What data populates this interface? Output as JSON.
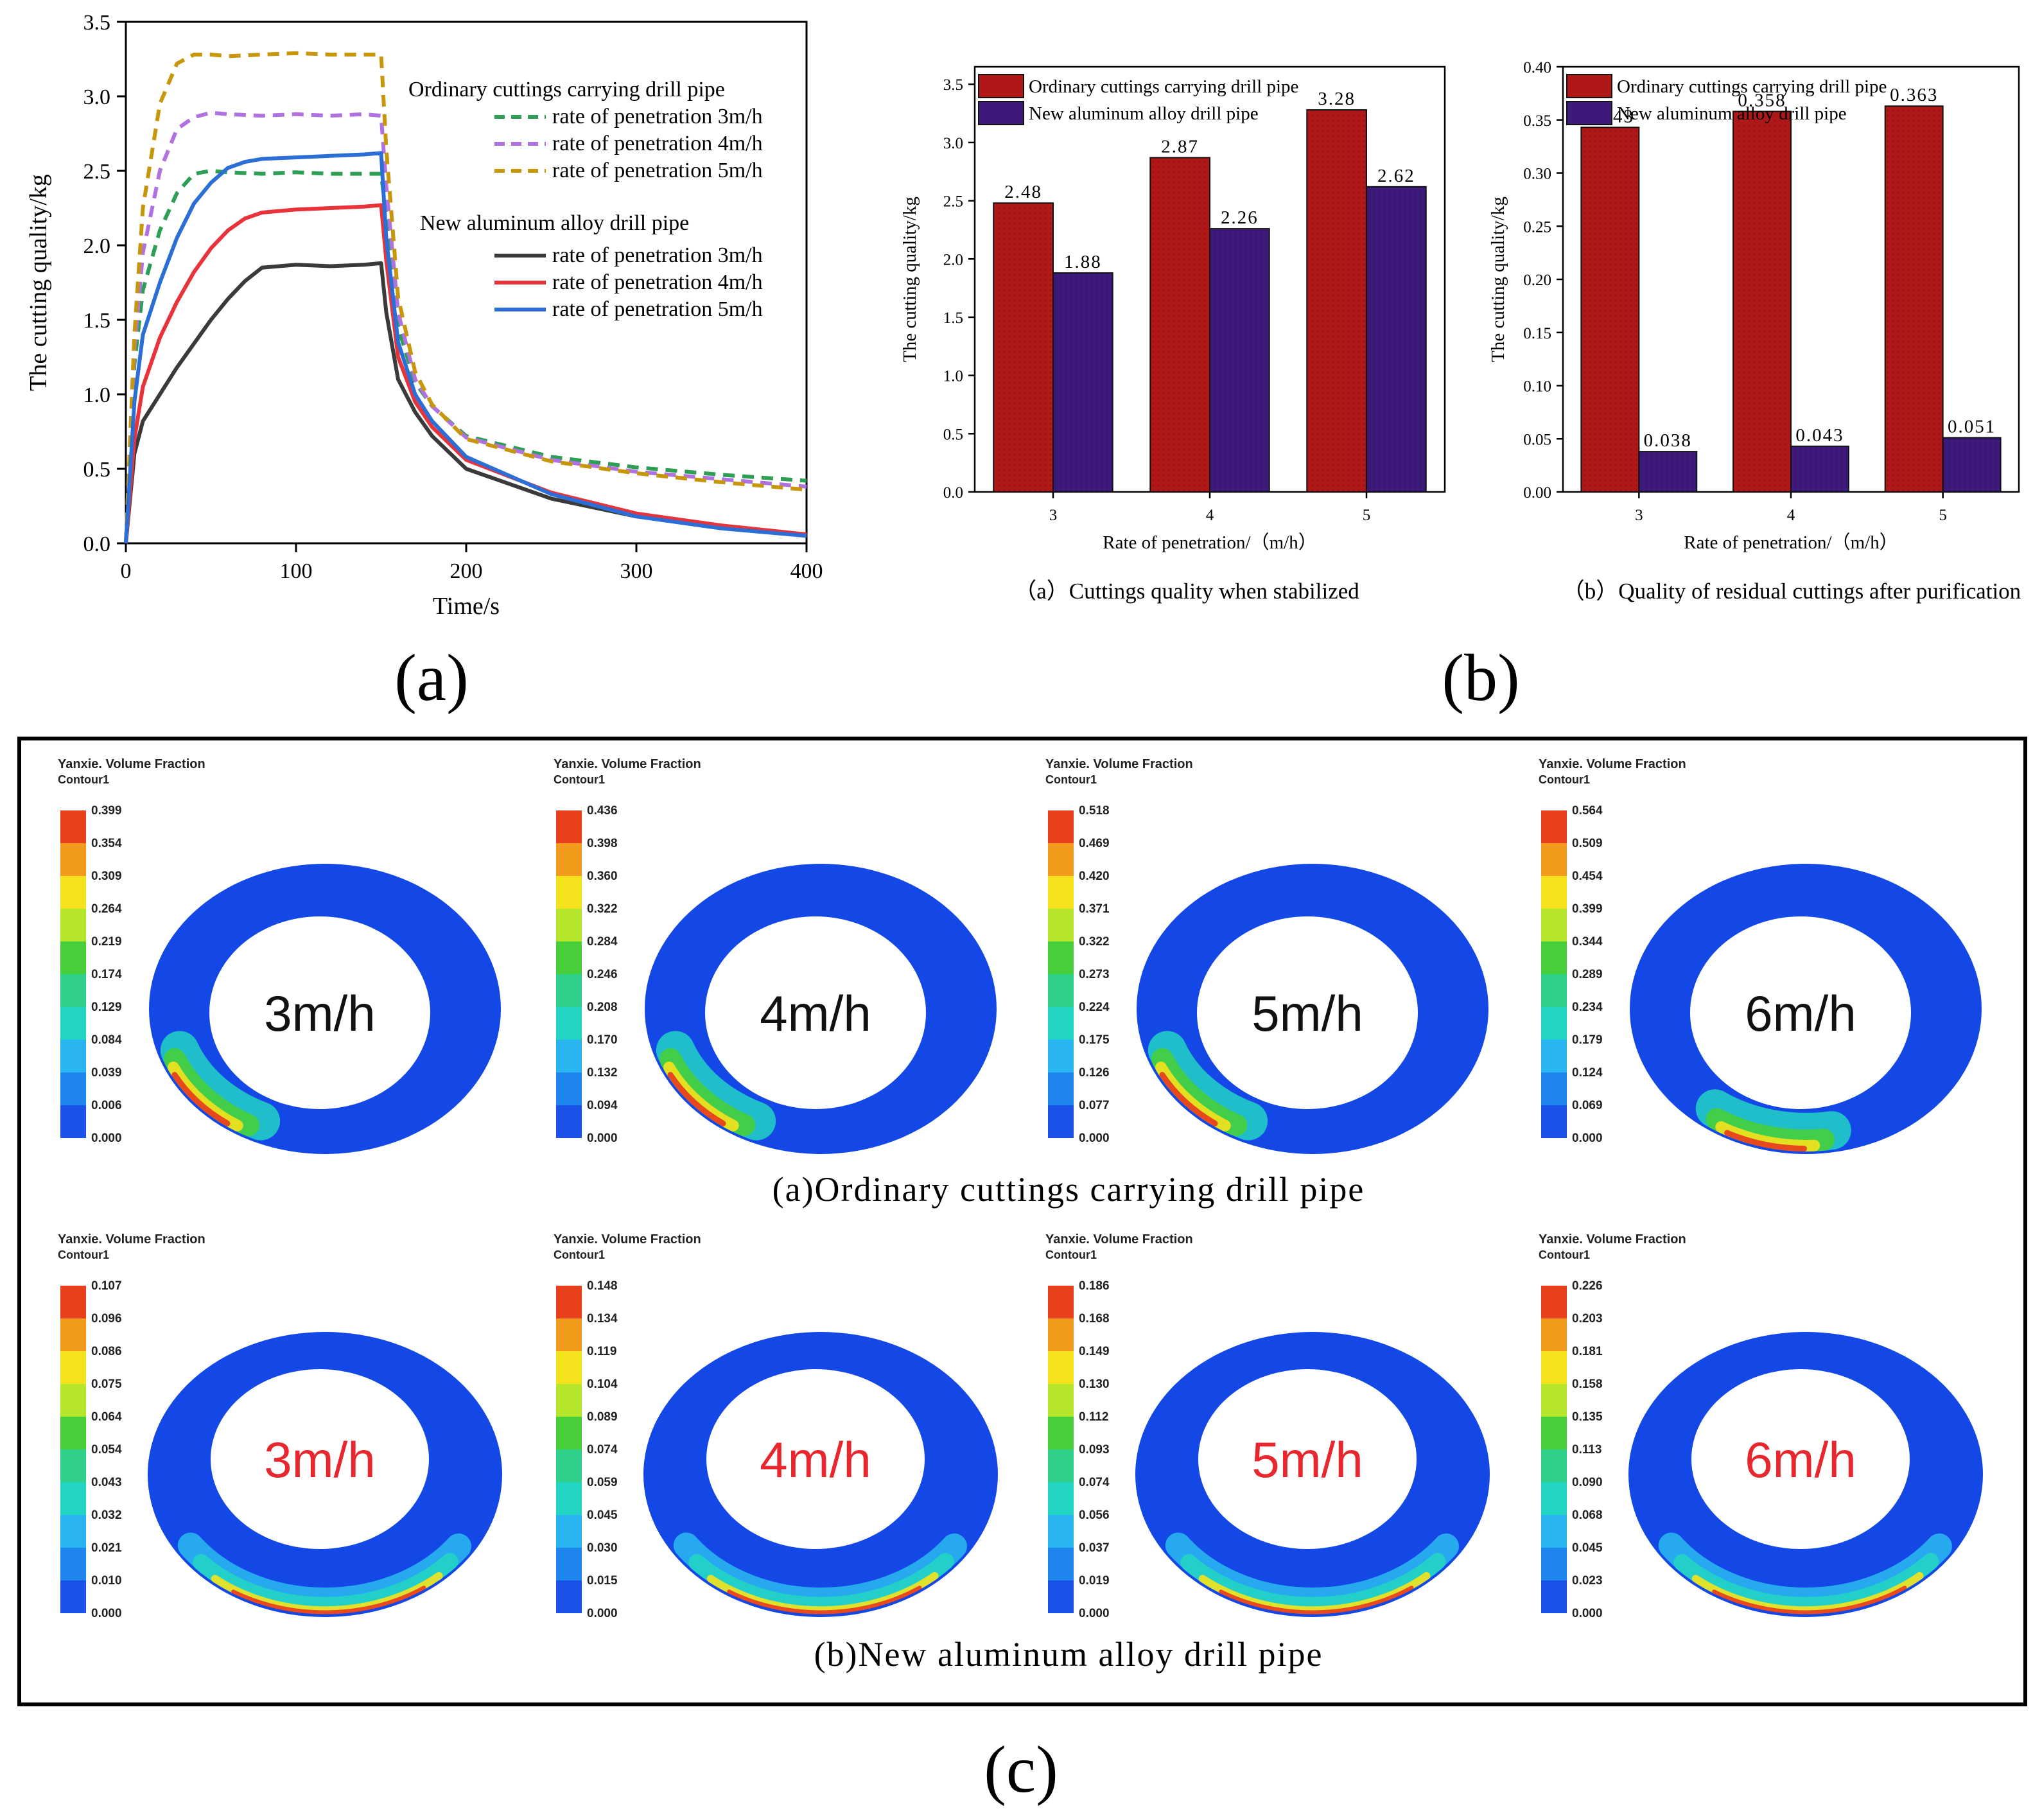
{
  "panel_labels": {
    "a": "(a)",
    "b": "(b)",
    "c": "(c)"
  },
  "chart_data": [
    {
      "id": "line",
      "type": "line",
      "xlabel": "Time/s",
      "ylabel": "The cutting quality/kg",
      "xlim": [
        0,
        400
      ],
      "ylim": [
        0,
        3.5
      ],
      "xticks": [
        "0",
        "100",
        "200",
        "300",
        "400"
      ],
      "yticks": [
        "0.0",
        "0.5",
        "1.0",
        "1.5",
        "2.0",
        "2.5",
        "3.0",
        "3.5"
      ],
      "grid": false,
      "legend": {
        "placement": "top-right",
        "group1": "Ordinary cuttings carrying drill pipe",
        "group2": "New aluminum alloy drill pipe"
      },
      "series": [
        {
          "name": "rate of penetration 3m/h",
          "group": 1,
          "dash": true,
          "color": "#2e9e55",
          "x": [
            0,
            5,
            10,
            20,
            30,
            40,
            50,
            60,
            80,
            100,
            120,
            140,
            150,
            153,
            160,
            170,
            180,
            200,
            250,
            300,
            350,
            400
          ],
          "y": [
            0,
            1.2,
            1.7,
            2.1,
            2.35,
            2.48,
            2.5,
            2.49,
            2.48,
            2.49,
            2.48,
            2.48,
            2.48,
            2.2,
            1.45,
            1.08,
            0.92,
            0.72,
            0.58,
            0.51,
            0.46,
            0.42
          ]
        },
        {
          "name": "rate of penetration 4m/h",
          "group": 1,
          "dash": true,
          "color": "#b072e0",
          "x": [
            0,
            5,
            10,
            20,
            30,
            40,
            50,
            60,
            80,
            100,
            120,
            140,
            150,
            153,
            160,
            170,
            180,
            200,
            250,
            300,
            350,
            400
          ],
          "y": [
            0,
            1.3,
            1.95,
            2.5,
            2.78,
            2.86,
            2.89,
            2.88,
            2.87,
            2.88,
            2.87,
            2.88,
            2.87,
            2.4,
            1.55,
            1.1,
            0.92,
            0.71,
            0.56,
            0.48,
            0.43,
            0.38
          ]
        },
        {
          "name": "rate of penetration 5m/h",
          "group": 1,
          "dash": true,
          "color": "#c8960a",
          "x": [
            0,
            5,
            10,
            20,
            30,
            40,
            50,
            60,
            80,
            100,
            120,
            140,
            150,
            153,
            160,
            170,
            180,
            200,
            250,
            300,
            350,
            400
          ],
          "y": [
            0,
            1.4,
            2.25,
            2.95,
            3.22,
            3.28,
            3.28,
            3.27,
            3.28,
            3.29,
            3.28,
            3.28,
            3.28,
            2.65,
            1.65,
            1.15,
            0.93,
            0.7,
            0.55,
            0.47,
            0.41,
            0.36
          ]
        },
        {
          "name": "rate of penetration 3m/h",
          "group": 2,
          "dash": false,
          "color": "#3a3a3a",
          "x": [
            0,
            5,
            10,
            20,
            30,
            40,
            50,
            60,
            70,
            80,
            100,
            120,
            140,
            150,
            153,
            160,
            170,
            180,
            200,
            250,
            300,
            350,
            400
          ],
          "y": [
            0,
            0.6,
            0.82,
            1.0,
            1.18,
            1.34,
            1.5,
            1.64,
            1.76,
            1.85,
            1.87,
            1.86,
            1.87,
            1.88,
            1.55,
            1.1,
            0.88,
            0.72,
            0.5,
            0.3,
            0.18,
            0.11,
            0.05
          ]
        },
        {
          "name": "rate of penetration 4m/h",
          "group": 2,
          "dash": false,
          "color": "#e8333a",
          "x": [
            0,
            5,
            10,
            20,
            30,
            40,
            50,
            60,
            70,
            80,
            100,
            120,
            140,
            150,
            153,
            160,
            170,
            180,
            200,
            250,
            300,
            350,
            400
          ],
          "y": [
            0,
            0.7,
            1.05,
            1.38,
            1.62,
            1.82,
            1.98,
            2.1,
            2.18,
            2.22,
            2.24,
            2.25,
            2.26,
            2.27,
            1.9,
            1.25,
            0.95,
            0.78,
            0.56,
            0.34,
            0.2,
            0.12,
            0.06
          ]
        },
        {
          "name": "rate of penetration 5m/h",
          "group": 2,
          "dash": false,
          "color": "#2b6fd6",
          "x": [
            0,
            5,
            10,
            20,
            30,
            40,
            50,
            60,
            70,
            80,
            100,
            120,
            140,
            150,
            153,
            160,
            170,
            180,
            200,
            250,
            300,
            350,
            400
          ],
          "y": [
            0,
            0.95,
            1.4,
            1.75,
            2.05,
            2.28,
            2.42,
            2.52,
            2.56,
            2.58,
            2.59,
            2.6,
            2.61,
            2.62,
            2.05,
            1.35,
            1.0,
            0.82,
            0.58,
            0.33,
            0.18,
            0.1,
            0.05
          ]
        }
      ]
    },
    {
      "id": "bar1",
      "type": "bar",
      "categories": [
        "3",
        "4",
        "5"
      ],
      "series": [
        {
          "name": "Ordinary cuttings carrying drill pipe",
          "color": "#b01818",
          "values": [
            2.48,
            2.87,
            3.28
          ],
          "labels": [
            "2.48",
            "2.87",
            "3.28"
          ]
        },
        {
          "name": "New aluminum alloy drill pipe",
          "color": "#3d1a7a",
          "values": [
            1.88,
            2.26,
            2.62
          ],
          "labels": [
            "1.88",
            "2.26",
            "2.62"
          ]
        }
      ],
      "xlabel": "Rate of penetration/（m/h）",
      "ylabel": "The cutting quality/kg",
      "ylim": [
        0,
        3.65
      ],
      "yticks": [
        "0.0",
        "0.5",
        "1.0",
        "1.5",
        "2.0",
        "2.5",
        "3.0",
        "3.5"
      ],
      "legend": "top-left",
      "caption": "（a）Cuttings quality when stabilized"
    },
    {
      "id": "bar2",
      "type": "bar",
      "categories": [
        "3",
        "4",
        "5"
      ],
      "series": [
        {
          "name": "Ordinary cuttings carrying drill pipe",
          "color": "#b01818",
          "values": [
            0.343,
            0.358,
            0.363
          ],
          "labels": [
            "0.343",
            "0.358",
            "0.363"
          ]
        },
        {
          "name": "New aluminum alloy drill pipe",
          "color": "#3d1a7a",
          "values": [
            0.038,
            0.043,
            0.051
          ],
          "labels": [
            "0.038",
            "0.043",
            "0.051"
          ]
        }
      ],
      "xlabel": "Rate of penetration/（m/h）",
      "ylabel": "The cutting quality/kg",
      "ylim": [
        0,
        0.4
      ],
      "yticks": [
        "0.00",
        "0.05",
        "0.10",
        "0.15",
        "0.20",
        "0.25",
        "0.30",
        "0.35",
        "0.40"
      ],
      "legend": "top-left",
      "caption": "（b）Quality of residual cuttings after purification"
    }
  ],
  "contours": {
    "header1": "Yanxie. Volume Fraction",
    "header2": "Contour1",
    "row_captions": [
      "(a)Ordinary cuttings carrying drill pipe",
      "(b)New aluminum alloy drill pipe"
    ],
    "colorbar_colors": [
      "#e8401c",
      "#f29a1c",
      "#f4e21c",
      "#b6e62a",
      "#46cf3a",
      "#2fd08a",
      "#22d4c4",
      "#28b4f0",
      "#1e84ee",
      "#1a52e8"
    ],
    "ring_color": "#1448e6",
    "rows": [
      {
        "label_color": "#111111",
        "panels": [
          {
            "speed": "3m/h",
            "ticks": [
              "0.399",
              "0.354",
              "0.309",
              "0.264",
              "0.219",
              "0.174",
              "0.129",
              "0.084",
              "0.039",
              "0.006",
              "0.000"
            ]
          },
          {
            "speed": "4m/h",
            "ticks": [
              "0.436",
              "0.398",
              "0.360",
              "0.322",
              "0.284",
              "0.246",
              "0.208",
              "0.170",
              "0.132",
              "0.094",
              "0.000"
            ]
          },
          {
            "speed": "5m/h",
            "ticks": [
              "0.518",
              "0.469",
              "0.420",
              "0.371",
              "0.322",
              "0.273",
              "0.224",
              "0.175",
              "0.126",
              "0.077",
              "0.000"
            ]
          },
          {
            "speed": "6m/h",
            "ticks": [
              "0.564",
              "0.509",
              "0.454",
              "0.399",
              "0.344",
              "0.289",
              "0.234",
              "0.179",
              "0.124",
              "0.069",
              "0.000"
            ]
          }
        ]
      },
      {
        "label_color": "#e8262e",
        "panels": [
          {
            "speed": "3m/h",
            "ticks": [
              "0.107",
              "0.096",
              "0.086",
              "0.075",
              "0.064",
              "0.054",
              "0.043",
              "0.032",
              "0.021",
              "0.010",
              "0.000"
            ]
          },
          {
            "speed": "4m/h",
            "ticks": [
              "0.148",
              "0.134",
              "0.119",
              "0.104",
              "0.089",
              "0.074",
              "0.059",
              "0.045",
              "0.030",
              "0.015",
              "0.000"
            ]
          },
          {
            "speed": "5m/h",
            "ticks": [
              "0.186",
              "0.168",
              "0.149",
              "0.130",
              "0.112",
              "0.093",
              "0.074",
              "0.056",
              "0.037",
              "0.019",
              "0.000"
            ]
          },
          {
            "speed": "6m/h",
            "ticks": [
              "0.226",
              "0.203",
              "0.181",
              "0.158",
              "0.135",
              "0.113",
              "0.090",
              "0.068",
              "0.045",
              "0.023",
              "0.000"
            ]
          }
        ]
      }
    ]
  }
}
